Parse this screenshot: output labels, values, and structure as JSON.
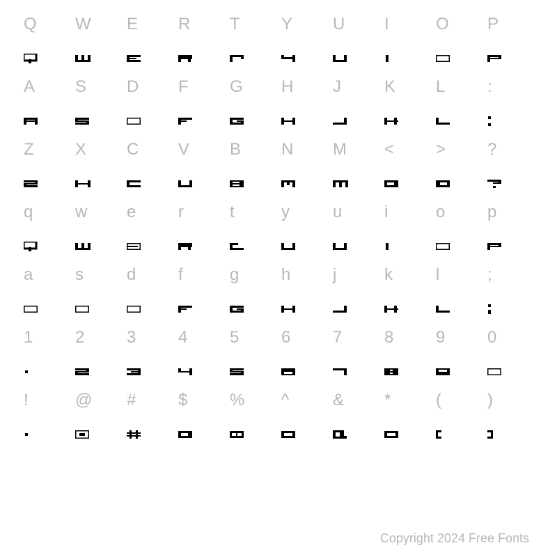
{
  "copyright": "Copyright 2024 Free Fonts",
  "glyph_color": "#000000",
  "ref_color": "#b8b8b8",
  "background": "#ffffff",
  "ref_fontsize": 24,
  "glyph_cell_height": 32,
  "rows": [
    [
      "Q",
      "W",
      "E",
      "R",
      "T",
      "Y",
      "U",
      "I",
      "O",
      "P"
    ],
    [
      "A",
      "S",
      "D",
      "F",
      "G",
      "H",
      "J",
      "K",
      "L",
      ":"
    ],
    [
      "Z",
      "X",
      "C",
      "V",
      "B",
      "N",
      "M",
      "<",
      ">",
      "?"
    ],
    [
      "q",
      "w",
      "e",
      "r",
      "t",
      "y",
      "u",
      "i",
      "o",
      "p"
    ],
    [
      "a",
      "s",
      "d",
      "f",
      "g",
      "h",
      "j",
      "k",
      "l",
      ";"
    ],
    [
      "1",
      "2",
      "3",
      "4",
      "5",
      "6",
      "7",
      "8",
      "9",
      "0"
    ],
    [
      "!",
      "@",
      "#",
      "$",
      "%",
      "^",
      "&",
      "*",
      "(",
      ")"
    ]
  ],
  "glyphs": {
    "Q": "<svg width='22' height='14' viewBox='0 0 22 14'><rect x='0' y='0' width='18' height='10' fill='none' stroke='#000' stroke-width='3'/><rect x='7' y='8' width='4' height='6' fill='#000'/></svg>",
    "W": "<svg width='22' height='10' viewBox='0 0 22 10'><rect x='0' y='0' width='4' height='10' fill='#000'/><rect x='9' y='0' width='4' height='10' fill='#000'/><rect x='18' y='0' width='4' height='10' fill='#000'/><rect x='0' y='7' width='22' height='3' fill='#000'/></svg>",
    "E": "<svg width='20' height='10' viewBox='0 0 20 10'><rect x='0' y='0' width='20' height='3' fill='#000'/><rect x='0' y='0' width='4' height='10' fill='#000'/><rect x='0' y='4' width='14' height='2' fill='#000'/><rect x='0' y='7' width='20' height='3' fill='#000'/></svg>",
    "R": "<svg width='20' height='10' viewBox='0 0 20 10'><rect x='0' y='0' width='20' height='6' fill='#000'/><rect x='0' y='0' width='4' height='10' fill='#000'/><rect x='14' y='6' width='4' height='4' fill='#000'/></svg>",
    "T": "<svg width='20' height='10' viewBox='0 0 20 10'><rect x='0' y='0' width='20' height='3' fill='#000'/><rect x='0' y='0' width='4' height='10' fill='#000'/><rect x='16' y='0' width='4' height='6' fill='#000'/></svg>",
    "Y": "<svg width='20' height='10' viewBox='0 0 20 10'><rect x='0' y='0' width='4' height='6' fill='#000'/><rect x='16' y='0' width='4' height='10' fill='#000'/><rect x='0' y='3' width='20' height='3' fill='#000'/></svg>",
    "U": "<svg width='20' height='10' viewBox='0 0 20 10'><rect x='0' y='0' width='4' height='10' fill='#000'/><rect x='16' y='0' width='4' height='10' fill='#000'/><rect x='0' y='7' width='20' height='3' fill='#000'/></svg>",
    "I": "<svg width='8' height='10' viewBox='0 0 8 10'><rect x='2' y='0' width='4' height='10' fill='#000'/></svg>",
    "O": "<svg width='20' height='10' viewBox='0 0 20 10'><rect x='0' y='0' width='20' height='10' fill='none' stroke='#000' stroke-width='3'/></svg>",
    "P": "<svg width='20' height='10' viewBox='0 0 20 10'><rect x='0' y='0' width='20' height='3' fill='#000'/><rect x='0' y='0' width='4' height='10' fill='#000'/><rect x='16' y='0' width='4' height='6' fill='#000'/><rect x='0' y='4' width='20' height='2' fill='#000'/></svg>",
    "A": "<svg width='20' height='10' viewBox='0 0 20 10'><rect x='0' y='0' width='20' height='3' fill='#000'/><rect x='0' y='0' width='4' height='10' fill='#000'/><rect x='16' y='0' width='4' height='10' fill='#000'/><rect x='0' y='4' width='20' height='2' fill='#000'/></svg>",
    "S": "<svg width='20' height='10' viewBox='0 0 20 10'><rect x='0' y='0' width='20' height='3' fill='#000'/><rect x='0' y='4' width='20' height='2' fill='#000'/><rect x='0' y='7' width='20' height='3' fill='#000'/><rect x='0' y='0' width='4' height='5' fill='#000'/><rect x='16' y='5' width='4' height='5' fill='#000'/></svg>",
    "D": "<svg width='20' height='10' viewBox='0 0 20 10'><rect x='0' y='0' width='20' height='10' fill='none' stroke='#000' stroke-width='3'/></svg>",
    "F": "<svg width='20' height='10' viewBox='0 0 20 10'><rect x='0' y='0' width='20' height='3' fill='#000'/><rect x='0' y='0' width='4' height='10' fill='#000'/><rect x='0' y='4' width='12' height='2' fill='#000'/></svg>",
    "G": "<svg width='20' height='10' viewBox='0 0 20 10'><rect x='0' y='0' width='20' height='3' fill='#000'/><rect x='0' y='0' width='4' height='10' fill='#000'/><rect x='0' y='7' width='20' height='3' fill='#000'/><rect x='10' y='4' width='10' height='2' fill='#000'/><rect x='16' y='4' width='4' height='6' fill='#000'/></svg>",
    "H": "<svg width='20' height='10' viewBox='0 0 20 10'><rect x='0' y='0' width='4' height='10' fill='#000'/><rect x='16' y='0' width='4' height='10' fill='#000'/><rect x='0' y='4' width='20' height='2' fill='#000'/></svg>",
    "J": "<svg width='20' height='10' viewBox='0 0 20 10'><rect x='16' y='0' width='4' height='10' fill='#000'/><rect x='0' y='7' width='20' height='3' fill='#000'/></svg>",
    "K": "<svg width='20' height='10' viewBox='0 0 20 10'><rect x='0' y='0' width='4' height='10' fill='#000'/><rect x='0' y='4' width='20' height='2' fill='#000'/><rect x='14' y='0' width='4' height='4' fill='#000'/><rect x='14' y='6' width='4' height='4' fill='#000'/></svg>",
    "L": "<svg width='20' height='10' viewBox='0 0 20 10'><rect x='0' y='0' width='4' height='10' fill='#000'/><rect x='0' y='7' width='20' height='3' fill='#000'/></svg>",
    ":": "<svg width='6' height='14' viewBox='0 0 6 14'><rect x='1' y='0' width='4' height='4' fill='#000'/><rect x='1' y='10' width='4' height='4' fill='#000'/></svg>",
    "Z": "<svg width='20' height='10' viewBox='0 0 20 10'><rect x='0' y='0' width='20' height='3' fill='#000'/><rect x='0' y='7' width='20' height='3' fill='#000'/><rect x='0' y='4' width='20' height='2' fill='#000'/><rect x='16' y='0' width='4' height='5' fill='#000'/><rect x='0' y='5' width='4' height='5' fill='#000'/></svg>",
    "X": "<svg width='22' height='10' viewBox='0 0 22 10'><rect x='0' y='0' width='4' height='4' fill='#000'/><rect x='18' y='0' width='4' height='4' fill='#000'/><rect x='0' y='4' width='22' height='2' fill='#000'/><rect x='0' y='6' width='4' height='4' fill='#000'/><rect x='18' y='6' width='4' height='4' fill='#000'/></svg>",
    "C": "<svg width='20' height='10' viewBox='0 0 20 10'><rect x='0' y='0' width='20' height='3' fill='#000'/><rect x='0' y='0' width='4' height='10' fill='#000'/><rect x='0' y='7' width='20' height='3' fill='#000'/></svg>",
    "V": "<svg width='20' height='10' viewBox='0 0 20 10'><rect x='0' y='0' width='4' height='10' fill='#000'/><rect x='16' y='0' width='4' height='10' fill='#000'/><rect x='0' y='7' width='20' height='3' fill='#000'/></svg>",
    "B": "<svg width='20' height='10' viewBox='0 0 20 10'><rect x='0' y='0' width='20' height='10' fill='#000'/><rect x='4' y='2' width='10' height='2' fill='#fff'/><rect x='4' y='6' width='10' height='2' fill='#fff'/></svg>",
    "N": "<svg width='20' height='10' viewBox='0 0 20 10'><rect x='0' y='0' width='4' height='10' fill='#000'/><rect x='16' y='0' width='4' height='10' fill='#000'/><rect x='0' y='0' width='20' height='3' fill='#000'/><rect x='8' y='3' width='4' height='4' fill='#000'/></svg>",
    "M": "<svg width='22' height='10' viewBox='0 0 22 10'><rect x='0' y='0' width='4' height='10' fill='#000'/><rect x='9' y='0' width='4' height='10' fill='#000'/><rect x='18' y='0' width='4' height='10' fill='#000'/><rect x='0' y='0' width='22' height='3' fill='#000'/></svg>",
    "<": "<svg width='20' height='10' viewBox='0 0 20 10'><rect x='0' y='0' width='20' height='10' fill='#000'/><rect x='4' y='3' width='10' height='4' fill='#fff'/></svg>",
    ">": "<svg width='20' height='10' viewBox='0 0 20 10'><rect x='0' y='0' width='20' height='10' fill='#000'/><rect x='6' y='3' width='10' height='4' fill='#fff'/></svg>",
    "?": "<svg width='20' height='12' viewBox='0 0 20 12'><rect x='0' y='0' width='20' height='3' fill='#000'/><rect x='16' y='0' width='4' height='6' fill='#000'/><rect x='8' y='4' width='12' height='2' fill='#000'/><rect x='8' y='9' width='4' height='3' fill='#000'/></svg>",
    "q": "<svg width='22' height='14' viewBox='0 0 22 14'><rect x='0' y='0' width='18' height='10' fill='none' stroke='#000' stroke-width='3'/><rect x='7' y='8' width='4' height='6' fill='#000'/></svg>",
    "w": "<svg width='22' height='10' viewBox='0 0 22 10'><rect x='0' y='0' width='4' height='10' fill='#000'/><rect x='9' y='0' width='4' height='10' fill='#000'/><rect x='18' y='0' width='4' height='10' fill='#000'/><rect x='0' y='7' width='22' height='3' fill='#000'/></svg>",
    "e": "<svg width='20' height='10' viewBox='0 0 20 10'><rect x='0' y='0' width='20' height='10' fill='none' stroke='#000' stroke-width='3'/><rect x='0' y='4' width='16' height='2' fill='#000'/></svg>",
    "r": "<svg width='20' height='10' viewBox='0 0 20 10'><rect x='0' y='0' width='20' height='6' fill='#000'/><rect x='0' y='0' width='4' height='10' fill='#000'/><rect x='14' y='6' width='4' height='4' fill='#000'/></svg>",
    "t": "<svg width='20' height='10' viewBox='0 0 20 10'><rect x='0' y='0' width='4' height='10' fill='#000'/><rect x='0' y='7' width='20' height='3' fill='#000'/><rect x='0' y='0' width='12' height='3' fill='#000'/></svg>",
    "y": "<svg width='20' height='10' viewBox='0 0 20 10'><rect x='0' y='0' width='4' height='7' fill='#000'/><rect x='16' y='0' width='4' height='7' fill='#000'/><rect x='0' y='7' width='20' height='3' fill='#000'/></svg>",
    "u": "<svg width='20' height='10' viewBox='0 0 20 10'><rect x='0' y='0' width='4' height='10' fill='#000'/><rect x='16' y='0' width='4' height='10' fill='#000'/><rect x='0' y='7' width='20' height='3' fill='#000'/></svg>",
    "i": "<svg width='8' height='10' viewBox='0 0 8 10'><rect x='2' y='0' width='4' height='10' fill='#000'/></svg>",
    "o": "<svg width='20' height='10' viewBox='0 0 20 10'><rect x='0' y='0' width='20' height='10' fill='none' stroke='#000' stroke-width='3'/></svg>",
    "p": "<svg width='20' height='10' viewBox='0 0 20 10'><rect x='0' y='0' width='20' height='3' fill='#000'/><rect x='0' y='0' width='4' height='10' fill='#000'/><rect x='16' y='0' width='4' height='6' fill='#000'/><rect x='0' y='4' width='20' height='2' fill='#000'/></svg>",
    "a": "<svg width='20' height='10' viewBox='0 0 20 10'><rect x='0' y='0' width='20' height='10' fill='none' stroke='#000' stroke-width='3'/></svg>",
    "s": "<svg width='20' height='10' viewBox='0 0 20 10'><rect x='0' y='0' width='20' height='10' fill='none' stroke='#000' stroke-width='3'/></svg>",
    "d": "<svg width='20' height='10' viewBox='0 0 20 10'><rect x='0' y='0' width='20' height='10' fill='none' stroke='#000' stroke-width='3'/></svg>",
    "f": "<svg width='20' height='10' viewBox='0 0 20 10'><rect x='0' y='0' width='20' height='3' fill='#000'/><rect x='0' y='0' width='4' height='10' fill='#000'/><rect x='0' y='4' width='12' height='2' fill='#000'/></svg>",
    "g": "<svg width='20' height='10' viewBox='0 0 20 10'><rect x='0' y='0' width='20' height='3' fill='#000'/><rect x='0' y='7' width='20' height='3' fill='#000'/><rect x='0' y='0' width='4' height='10' fill='#000'/><rect x='10' y='4' width='10' height='2' fill='#000'/><rect x='16' y='4' width='4' height='6' fill='#000'/></svg>",
    "h": "<svg width='20' height='10' viewBox='0 0 20 10'><rect x='0' y='0' width='4' height='10' fill='#000'/><rect x='16' y='0' width='4' height='10' fill='#000'/><rect x='0' y='4' width='20' height='2' fill='#000'/></svg>",
    "j": "<svg width='20' height='10' viewBox='0 0 20 10'><rect x='16' y='0' width='4' height='10' fill='#000'/><rect x='0' y='7' width='20' height='3' fill='#000'/></svg>",
    "k": "<svg width='20' height='10' viewBox='0 0 20 10'><rect x='0' y='0' width='4' height='10' fill='#000'/><rect x='0' y='4' width='20' height='2' fill='#000'/><rect x='14' y='0' width='4' height='4' fill='#000'/><rect x='14' y='6' width='4' height='4' fill='#000'/></svg>",
    "l": "<svg width='20' height='10' viewBox='0 0 20 10'><rect x='0' y='0' width='4' height='10' fill='#000'/><rect x='0' y='7' width='20' height='3' fill='#000'/></svg>",
    ";": "<svg width='6' height='14' viewBox='0 0 6 14'><rect x='1' y='0' width='4' height='4' fill='#000'/><rect x='1' y='8' width='4' height='6' fill='#000'/></svg>",
    "1": "<svg width='8' height='10' viewBox='0 0 8 10'><rect x='2' y='3' width='4' height='4' fill='#000'/></svg>",
    "2": "<svg width='20' height='10' viewBox='0 0 20 10'><rect x='0' y='0' width='20' height='3' fill='#000'/><rect x='0' y='4' width='20' height='2' fill='#000'/><rect x='0' y='7' width='20' height='3' fill='#000'/><rect x='16' y='0' width='4' height='5' fill='#000'/><rect x='0' y='5' width='4' height='5' fill='#000'/></svg>",
    "3": "<svg width='20' height='10' viewBox='0 0 20 10'><rect x='0' y='0' width='20' height='3' fill='#000'/><rect x='6' y='4' width='14' height='2' fill='#000'/><rect x='0' y='7' width='20' height='3' fill='#000'/><rect x='16' y='0' width='4' height='10' fill='#000'/></svg>",
    "4": "<svg width='20' height='10' viewBox='0 0 20 10'><rect x='0' y='0' width='4' height='6' fill='#000'/><rect x='16' y='0' width='4' height='10' fill='#000'/><rect x='0' y='4' width='20' height='2' fill='#000'/></svg>",
    "5": "<svg width='20' height='10' viewBox='0 0 20 10'><rect x='0' y='0' width='20' height='3' fill='#000'/><rect x='0' y='4' width='20' height='2' fill='#000'/><rect x='0' y='7' width='20' height='3' fill='#000'/><rect x='0' y='0' width='4' height='5' fill='#000'/><rect x='16' y='5' width='4' height='5' fill='#000'/></svg>",
    "6": "<svg width='20' height='10' viewBox='0 0 20 10'><rect x='0' y='0' width='20' height='10' fill='#000'/><rect x='4' y='5' width='12' height='3' fill='#fff'/></svg>",
    "7": "<svg width='20' height='10' viewBox='0 0 20 10'><rect x='0' y='0' width='20' height='3' fill='#000'/><rect x='16' y='0' width='4' height='10' fill='#000'/></svg>",
    "8": "<svg width='20' height='10' viewBox='0 0 20 10'><rect x='0' y='0' width='20' height='10' fill='#000'/><rect x='8' y='2' width='4' height='2' fill='#fff'/><rect x='8' y='6' width='4' height='2' fill='#fff'/></svg>",
    "9": "<svg width='20' height='10' viewBox='0 0 20 10'><rect x='0' y='0' width='20' height='10' fill='#000'/><rect x='4' y='2' width='12' height='3' fill='#fff'/></svg>",
    "0": "<svg width='20' height='10' viewBox='0 0 20 10'><rect x='0' y='0' width='20' height='10' fill='none' stroke='#000' stroke-width='3'/></svg>",
    "!": "<svg width='8' height='10' viewBox='0 0 8 10'><rect x='2' y='3' width='4' height='4' fill='#000'/></svg>",
    "@": "<svg width='20' height='12' viewBox='0 0 20 12'><rect x='0' y='0' width='20' height='12' fill='none' stroke='#000' stroke-width='3'/><rect x='6' y='4' width='8' height='4' fill='#000'/></svg>",
    "#": "<svg width='20' height='12' viewBox='0 0 20 12'><rect x='4' y='0' width='3' height='12' fill='#000'/><rect x='13' y='0' width='3' height='12' fill='#000'/><rect x='0' y='3' width='20' height='2' fill='#000'/><rect x='0' y='7' width='20' height='2' fill='#000'/></svg>",
    "$": "<svg width='20' height='10' viewBox='0 0 20 10'><rect x='0' y='0' width='20' height='10' fill='#000'/><rect x='4' y='3' width='10' height='4' fill='#fff'/></svg>",
    "%": "<svg width='20' height='10' viewBox='0 0 20 10'><rect x='0' y='0' width='20' height='10' fill='#000'/><rect x='3' y='3' width='6' height='4' fill='#fff'/><rect x='11' y='3' width='6' height='4' fill='#fff'/></svg>",
    "^": "<svg width='20' height='10' viewBox='0 0 20 10'><rect x='0' y='0' width='20' height='10' fill='#000'/><rect x='4' y='3' width='12' height='4' fill='#fff'/></svg>",
    "&": "<svg width='20' height='12' viewBox='0 0 20 12'><rect x='0' y='0' width='16' height='12' fill='#000'/><rect x='4' y='3' width='6' height='6' fill='#fff'/><rect x='14' y='8' width='6' height='4' fill='#000'/></svg>",
    "*": "<svg width='20' height='10' viewBox='0 0 20 10'><rect x='0' y='0' width='20' height='10' fill='#000'/><rect x='4' y='3' width='12' height='4' fill='#fff'/></svg>",
    "(": "<svg width='8' height='12' viewBox='0 0 8 12'><rect x='0' y='0' width='8' height='3' fill='#000'/><rect x='0' y='0' width='3' height='12' fill='#000'/><rect x='0' y='9' width='8' height='3' fill='#000'/></svg>",
    ")": "<svg width='8' height='12' viewBox='0 0 8 12'><rect x='0' y='0' width='8' height='3' fill='#000'/><rect x='5' y='0' width='3' height='12' fill='#000'/><rect x='0' y='9' width='8' height='3' fill='#000'/></svg>"
  }
}
